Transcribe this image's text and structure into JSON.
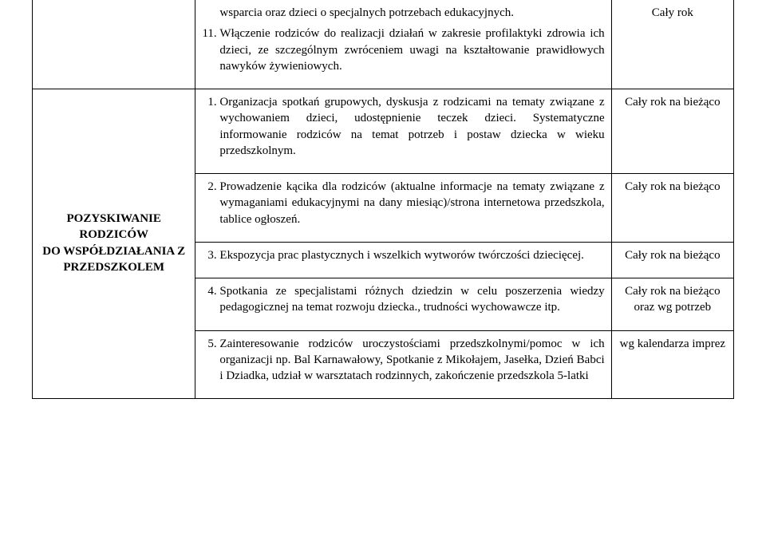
{
  "row1": {
    "intro": "wsparcia oraz dzieci o specjalnych potrzebach edukacyjnych.",
    "item11": "Włączenie rodziców do realizacji działań w zakresie profilaktyki zdrowia ich dzieci, ze szczególnym zwróceniem uwagi na kształtowanie prawidłowych nawyków żywieniowych.",
    "right": "Cały rok"
  },
  "row2": {
    "left_l1": "POZYSKIWANIE RODZICÓW",
    "left_l2": "DO WSPÓŁDZIAŁANIA Z",
    "left_l3": "PRZEDSZKOLEM",
    "item1": "Organizacja spotkań grupowych, dyskusja z rodzicami na tematy związane z wychowaniem dzieci, udostępnienie teczek dzieci. Systematyczne informowanie rodziców na temat potrzeb i postaw dziecka w wieku przedszkolnym.",
    "right": "Cały rok na bieżąco"
  },
  "row3": {
    "item2": "Prowadzenie kącika dla rodziców (aktualne informacje na tematy związane z wymaganiami edukacyjnymi na dany miesiąc)/strona internetowa przedszkola, tablice ogłoszeń.",
    "right": "Cały rok na bieżąco"
  },
  "row4": {
    "item3": "Ekspozycja prac plastycznych i wszelkich wytworów twórczości dziecięcej.",
    "right": "Cały rok na bieżąco"
  },
  "row5": {
    "item4": "Spotkania ze specjalistami różnych dziedzin w celu poszerzenia wiedzy pedagogicznej na temat rozwoju dziecka., trudności wychowawcze itp.",
    "right_l1": "Cały rok na bieżąco",
    "right_l2": "oraz wg potrzeb"
  },
  "row6": {
    "item5": "Zainteresowanie rodziców uroczystościami przedszkolnymi/pomoc w ich organizacji np. Bal Karnawałowy, Spotkanie z Mikołajem, Jasełka, Dzień Babci i Dziadka, udział w warsztatach rodzinnych, zakończenie przedszkola 5-latki",
    "right": "wg kalendarza imprez"
  }
}
